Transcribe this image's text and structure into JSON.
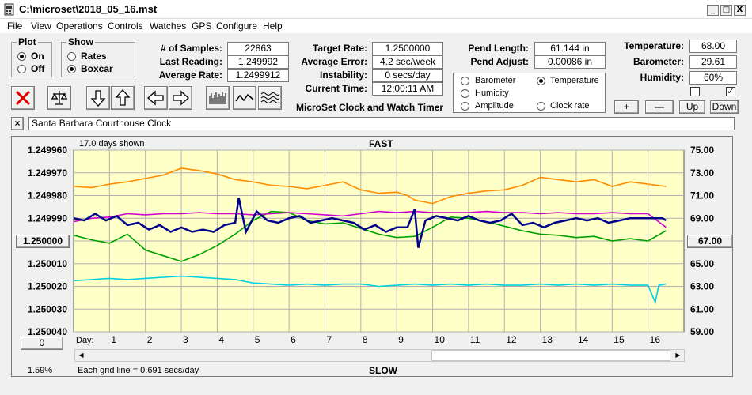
{
  "window": {
    "title": "C:\\microset\\2018_05_16.mst",
    "min": "_",
    "max": "□",
    "close": "X"
  },
  "menu": [
    "File",
    "View",
    "Operations",
    "Controls",
    "Watches",
    "GPS",
    "Configure",
    "Help"
  ],
  "plot_group": {
    "legend": "Plot",
    "options": [
      "On",
      "Off"
    ],
    "selected": "On"
  },
  "show_group": {
    "legend": "Show",
    "options": [
      "Rates",
      "Boxcar"
    ],
    "selected": "Boxcar"
  },
  "stats": {
    "samples_label": "# of Samples:",
    "samples": "22863",
    "last_label": "Last Reading:",
    "last": "1.249992",
    "avg_label": "Average Rate:",
    "avg": "1.2499912",
    "target_label": "Target Rate:",
    "target": "1.2500000",
    "error_label": "Average Error:",
    "error": "4.2 sec/week",
    "instab_label": "Instability:",
    "instab": "0 secs/day",
    "time_label": "Current Time:",
    "time": "12:00:11 AM",
    "pend_len_label": "Pend Length:",
    "pend_len": "61.144 in",
    "pend_adj_label": "Pend Adjust:",
    "pend_adj": "0.00086 in",
    "temp_label": "Temperature:",
    "temp": "68.00",
    "baro_label": "Barometer:",
    "baro": "29.61",
    "hum_label": "Humidity:",
    "hum": "60%"
  },
  "app_caption": "MicroSet Clock and Watch Timer",
  "legend_items": [
    {
      "name": "Barometer",
      "color": "#ff8c00",
      "selected": false
    },
    {
      "name": "Temperature",
      "color": "#00a000",
      "selected": true
    },
    {
      "name": "Humidity",
      "color": "#d000d0",
      "selected": false
    },
    {
      "name": "Amplitude",
      "color": "#00d0e0",
      "selected": false
    },
    {
      "name": "Clock rate",
      "color": "#000000",
      "selected": false
    }
  ],
  "small_buttons": {
    "plus": "+",
    "minus": "—",
    "up": "Up",
    "down": "Down"
  },
  "checkboxes": {
    "left": "",
    "right": "✓"
  },
  "clock_name": "Santa Barbara Courthouse Clock",
  "close_x": "×",
  "chart_data": {
    "type": "line",
    "header_left": "17.0 days shown",
    "top_label": "FAST",
    "bottom_label": "SLOW",
    "footer_left": "Each grid line = 0.691 secs/day",
    "percent": "1.59%",
    "left_button": "1.250000",
    "right_button": "67.00",
    "zero_button": "0",
    "day_label": "Day:",
    "days": [
      "1",
      "2",
      "3",
      "4",
      "5",
      "6",
      "7",
      "8",
      "9",
      "10",
      "11",
      "12",
      "13",
      "14",
      "15",
      "16"
    ],
    "left_axis": [
      "1.249960",
      "1.249970",
      "1.249980",
      "1.249990",
      "1.250000",
      "1.250010",
      "1.250020",
      "1.250030",
      "1.250040"
    ],
    "right_axis": [
      "75.00",
      "73.00",
      "71.00",
      "69.00",
      "67.00",
      "65.00",
      "63.00",
      "61.00",
      "59.00"
    ],
    "ylim_left": [
      1.25004,
      1.24996
    ],
    "ylim_right": [
      59,
      75
    ],
    "xlim": [
      0,
      17
    ],
    "series": [
      {
        "name": "Barometer",
        "color": "#ff8c00",
        "x": [
          0,
          0.5,
          1,
          1.5,
          2,
          2.5,
          3,
          3.5,
          4,
          4.5,
          5,
          5.5,
          6,
          6.5,
          7,
          7.5,
          8,
          8.5,
          9,
          9.3,
          9.5,
          10,
          10.5,
          11,
          11.5,
          12,
          12.5,
          13,
          13.5,
          14,
          14.5,
          15,
          15.5,
          16,
          16.5
        ],
        "y": [
          71.8,
          71.7,
          72.0,
          72.2,
          72.5,
          72.8,
          73.4,
          73.2,
          72.9,
          72.4,
          72.2,
          71.9,
          71.8,
          71.6,
          71.9,
          72.2,
          71.5,
          71.2,
          71.3,
          71.0,
          70.6,
          70.3,
          70.9,
          71.2,
          71.4,
          71.5,
          71.9,
          72.6,
          72.4,
          72.2,
          72.4,
          71.8,
          72.2,
          72.0,
          71.8
        ]
      },
      {
        "name": "Temperature",
        "color": "#00a000",
        "x": [
          0,
          0.5,
          1,
          1.5,
          2,
          2.5,
          3,
          3.5,
          4,
          4.5,
          5,
          5.5,
          6,
          6.5,
          7,
          7.5,
          8,
          8.5,
          9,
          9.5,
          10,
          10.5,
          11,
          11.5,
          12,
          12.5,
          13,
          13.5,
          14,
          14.5,
          15,
          15.5,
          16,
          16.5
        ],
        "y": [
          67.5,
          67.1,
          66.8,
          67.6,
          66.2,
          65.7,
          65.2,
          65.8,
          66.6,
          67.6,
          68.8,
          69.6,
          69.5,
          68.8,
          68.5,
          68.6,
          68.1,
          67.6,
          67.3,
          67.4,
          68.2,
          69.1,
          69.0,
          68.7,
          68.3,
          67.9,
          67.6,
          67.5,
          67.3,
          67.4,
          67.0,
          67.2,
          67.0,
          67.9
        ]
      },
      {
        "name": "Humidity",
        "color": "#d000d0",
        "x": [
          0,
          0.5,
          1,
          1.5,
          2,
          2.5,
          3,
          3.5,
          4,
          4.5,
          5,
          5.5,
          6,
          6.5,
          7,
          7.5,
          8,
          8.5,
          9,
          9.5,
          10,
          10.5,
          11,
          11.5,
          12,
          12.5,
          13,
          13.5,
          14,
          14.5,
          15,
          15.5,
          16,
          16.5
        ],
        "y": [
          68.7,
          69.0,
          69.1,
          69.4,
          69.3,
          69.4,
          69.4,
          69.5,
          69.4,
          69.4,
          69.3,
          69.4,
          69.5,
          69.4,
          69.3,
          69.2,
          69.4,
          69.6,
          69.5,
          69.6,
          69.5,
          69.5,
          69.5,
          69.6,
          69.5,
          69.5,
          69.4,
          69.5,
          69.4,
          69.4,
          69.5,
          69.4,
          69.4,
          68.2
        ]
      },
      {
        "name": "Amplitude",
        "color": "#00d0e0",
        "x": [
          0,
          0.5,
          1,
          1.5,
          2,
          2.5,
          3,
          3.5,
          4,
          4.5,
          5,
          5.5,
          6,
          6.5,
          7,
          7.5,
          8,
          8.5,
          9,
          9.5,
          10,
          10.5,
          11,
          11.5,
          12,
          12.5,
          13,
          13.5,
          14,
          14.5,
          15,
          15.5,
          16,
          16.2,
          16.3,
          16.5
        ],
        "y": [
          63.5,
          63.6,
          63.7,
          63.6,
          63.7,
          63.8,
          63.9,
          63.8,
          63.7,
          63.6,
          63.3,
          63.2,
          63.1,
          63.2,
          63.1,
          63.2,
          63.2,
          63.0,
          63.1,
          63.2,
          63.1,
          63.2,
          63.1,
          63.2,
          63.1,
          63.1,
          63.2,
          63.1,
          63.2,
          63.1,
          63.2,
          63.1,
          63.1,
          61.6,
          63.1,
          63.2
        ]
      },
      {
        "name": "Clock rate",
        "color": "#00008b",
        "x": [
          0,
          0.3,
          0.6,
          0.9,
          1.2,
          1.5,
          1.8,
          2.1,
          2.4,
          2.7,
          3.0,
          3.3,
          3.6,
          3.9,
          4.2,
          4.5,
          4.6,
          4.8,
          5.1,
          5.4,
          5.7,
          6.0,
          6.3,
          6.6,
          6.9,
          7.2,
          7.5,
          7.8,
          8.1,
          8.4,
          8.7,
          9.0,
          9.3,
          9.5,
          9.6,
          9.8,
          10.1,
          10.4,
          10.7,
          11.0,
          11.3,
          11.6,
          11.9,
          12.2,
          12.5,
          12.8,
          13.1,
          13.4,
          13.7,
          14.0,
          14.3,
          14.6,
          14.9,
          15.2,
          15.5,
          15.8,
          16.1,
          16.4,
          16.5
        ],
        "y": [
          1.24999,
          1.249991,
          1.249988,
          1.249991,
          1.249989,
          1.249993,
          1.249992,
          1.249995,
          1.249993,
          1.249996,
          1.249994,
          1.249996,
          1.249995,
          1.249996,
          1.249993,
          1.249992,
          1.249981,
          1.249996,
          1.249987,
          1.249991,
          1.249992,
          1.24999,
          1.249989,
          1.249992,
          1.249991,
          1.24999,
          1.249991,
          1.249992,
          1.249995,
          1.249993,
          1.249996,
          1.249994,
          1.249994,
          1.249986,
          1.250003,
          1.249991,
          1.249989,
          1.24999,
          1.249991,
          1.249989,
          1.249991,
          1.249992,
          1.249991,
          1.249988,
          1.249993,
          1.249992,
          1.249994,
          1.249992,
          1.249991,
          1.24999,
          1.249991,
          1.24999,
          1.249992,
          1.249991,
          1.24999,
          1.24999,
          1.24999,
          1.24999,
          1.249991
        ]
      }
    ]
  }
}
